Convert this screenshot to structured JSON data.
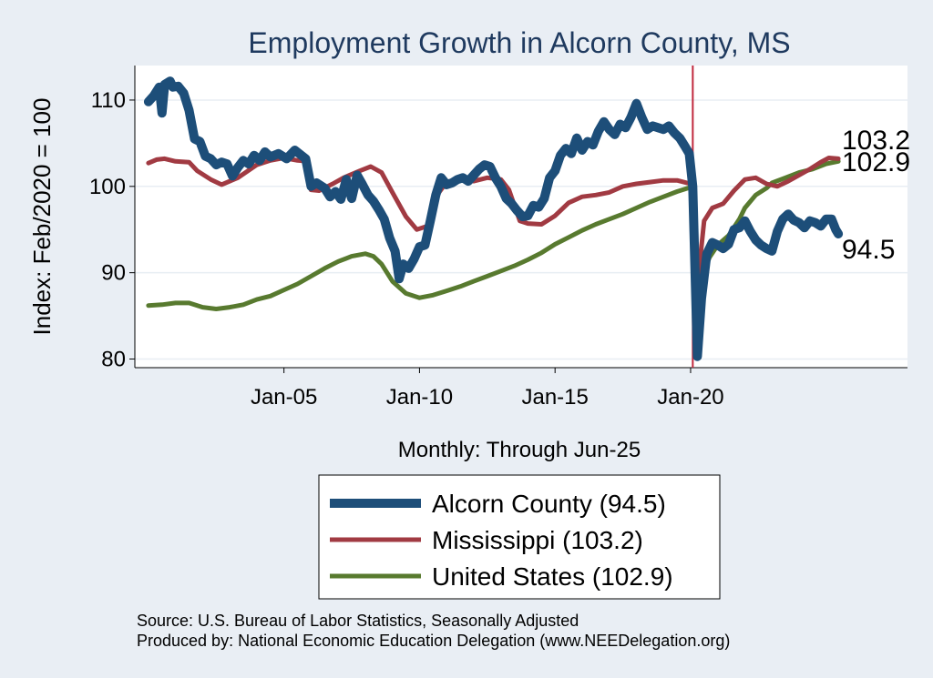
{
  "chart_data": {
    "type": "line",
    "title": "Employment Growth in Alcorn  County, MS",
    "ylabel": "Index: Feb/2020 = 100",
    "xlabel": "Monthly: Through Jun-25",
    "ylim": [
      79,
      114
    ],
    "y_ticks": [
      {
        "value": 80,
        "label": "80"
      },
      {
        "value": 90,
        "label": "90"
      },
      {
        "value": 100,
        "label": "100"
      },
      {
        "value": 110,
        "label": "110"
      }
    ],
    "x_range": [
      1999.5,
      2028.0
    ],
    "x_ticks": [
      {
        "value": 2005.0,
        "label": "Jan-05"
      },
      {
        "value": 2010.0,
        "label": "Jan-10"
      },
      {
        "value": 2015.0,
        "label": "Jan-15"
      },
      {
        "value": 2020.0,
        "label": "Jan-20"
      }
    ],
    "reference_line": {
      "x": 2020.08,
      "color": "#c0283d"
    },
    "grid": true,
    "series": [
      {
        "name": "Alcorn  County",
        "color": "#1d4e79",
        "width": 10,
        "end_value": "94.5",
        "points": [
          [
            2000.0,
            109.8
          ],
          [
            2000.2,
            110.5
          ],
          [
            2000.4,
            111.5
          ],
          [
            2000.5,
            108.5
          ],
          [
            2000.6,
            111.8
          ],
          [
            2000.8,
            112.2
          ],
          [
            2000.9,
            111.5
          ],
          [
            2001.1,
            111.6
          ],
          [
            2001.3,
            110.8
          ],
          [
            2001.5,
            108.8
          ],
          [
            2001.7,
            105.5
          ],
          [
            2001.9,
            105.2
          ],
          [
            2002.1,
            103.5
          ],
          [
            2002.3,
            103.2
          ],
          [
            2002.5,
            102.5
          ],
          [
            2002.7,
            102.8
          ],
          [
            2002.9,
            102.6
          ],
          [
            2003.1,
            101.2
          ],
          [
            2003.3,
            102.2
          ],
          [
            2003.5,
            103.0
          ],
          [
            2003.7,
            102.6
          ],
          [
            2003.9,
            103.6
          ],
          [
            2004.1,
            103.0
          ],
          [
            2004.3,
            104.0
          ],
          [
            2004.5,
            103.4
          ],
          [
            2004.8,
            103.8
          ],
          [
            2005.1,
            103.2
          ],
          [
            2005.4,
            104.2
          ],
          [
            2005.8,
            103.2
          ],
          [
            2006.0,
            100.0
          ],
          [
            2006.2,
            100.4
          ],
          [
            2006.5,
            99.8
          ],
          [
            2006.7,
            98.8
          ],
          [
            2006.9,
            99.4
          ],
          [
            2007.1,
            98.5
          ],
          [
            2007.3,
            100.8
          ],
          [
            2007.5,
            98.6
          ],
          [
            2007.7,
            101.3
          ],
          [
            2007.9,
            100.2
          ],
          [
            2008.1,
            99.0
          ],
          [
            2008.3,
            98.3
          ],
          [
            2008.5,
            97.3
          ],
          [
            2008.7,
            96.2
          ],
          [
            2008.9,
            94.0
          ],
          [
            2009.1,
            92.5
          ],
          [
            2009.25,
            89.3
          ],
          [
            2009.4,
            91.0
          ],
          [
            2009.6,
            90.5
          ],
          [
            2009.8,
            91.6
          ],
          [
            2010.0,
            93.0
          ],
          [
            2010.2,
            93.2
          ],
          [
            2010.4,
            96.0
          ],
          [
            2010.6,
            99.0
          ],
          [
            2010.8,
            101.0
          ],
          [
            2011.0,
            100.2
          ],
          [
            2011.2,
            100.4
          ],
          [
            2011.4,
            100.8
          ],
          [
            2011.6,
            101.0
          ],
          [
            2011.8,
            100.6
          ],
          [
            2012.0,
            101.3
          ],
          [
            2012.2,
            102.0
          ],
          [
            2012.4,
            102.5
          ],
          [
            2012.6,
            102.3
          ],
          [
            2012.8,
            101.0
          ],
          [
            2013.0,
            100.0
          ],
          [
            2013.2,
            98.6
          ],
          [
            2013.4,
            98.0
          ],
          [
            2013.6,
            97.2
          ],
          [
            2013.8,
            96.5
          ],
          [
            2014.0,
            96.6
          ],
          [
            2014.2,
            97.8
          ],
          [
            2014.4,
            97.6
          ],
          [
            2014.6,
            98.6
          ],
          [
            2014.8,
            101.0
          ],
          [
            2015.0,
            101.8
          ],
          [
            2015.2,
            103.6
          ],
          [
            2015.4,
            104.4
          ],
          [
            2015.6,
            103.8
          ],
          [
            2015.8,
            105.6
          ],
          [
            2016.0,
            104.2
          ],
          [
            2016.2,
            105.2
          ],
          [
            2016.4,
            104.8
          ],
          [
            2016.6,
            106.4
          ],
          [
            2016.8,
            107.5
          ],
          [
            2017.0,
            106.6
          ],
          [
            2017.2,
            106.0
          ],
          [
            2017.4,
            107.2
          ],
          [
            2017.6,
            106.8
          ],
          [
            2017.8,
            108.0
          ],
          [
            2018.0,
            109.6
          ],
          [
            2018.2,
            108.0
          ],
          [
            2018.4,
            106.6
          ],
          [
            2018.6,
            107.0
          ],
          [
            2018.8,
            106.8
          ],
          [
            2019.0,
            106.6
          ],
          [
            2019.2,
            107.0
          ],
          [
            2019.4,
            106.2
          ],
          [
            2019.6,
            105.6
          ],
          [
            2019.8,
            104.6
          ],
          [
            2019.95,
            103.8
          ],
          [
            2020.08,
            100.0
          ],
          [
            2020.25,
            80.3
          ],
          [
            2020.4,
            87.0
          ],
          [
            2020.6,
            92.2
          ],
          [
            2020.8,
            93.5
          ],
          [
            2021.0,
            93.2
          ],
          [
            2021.2,
            92.8
          ],
          [
            2021.4,
            93.3
          ],
          [
            2021.6,
            95.0
          ],
          [
            2021.8,
            95.2
          ],
          [
            2022.0,
            96.0
          ],
          [
            2022.2,
            94.8
          ],
          [
            2022.4,
            93.8
          ],
          [
            2022.6,
            93.2
          ],
          [
            2022.8,
            92.8
          ],
          [
            2023.0,
            92.5
          ],
          [
            2023.2,
            94.8
          ],
          [
            2023.4,
            96.2
          ],
          [
            2023.6,
            96.8
          ],
          [
            2023.8,
            96.1
          ],
          [
            2024.0,
            95.8
          ],
          [
            2024.2,
            95.2
          ],
          [
            2024.4,
            96.0
          ],
          [
            2024.6,
            95.8
          ],
          [
            2024.8,
            95.4
          ],
          [
            2025.0,
            96.2
          ],
          [
            2025.2,
            96.2
          ],
          [
            2025.35,
            95.0
          ],
          [
            2025.45,
            94.5
          ]
        ]
      },
      {
        "name": "Mississippi",
        "color": "#a13a42",
        "width": 5,
        "end_value": "103.2",
        "points": [
          [
            2000.0,
            102.7
          ],
          [
            2000.3,
            103.1
          ],
          [
            2000.6,
            103.2
          ],
          [
            2001.0,
            102.9
          ],
          [
            2001.5,
            102.8
          ],
          [
            2001.8,
            101.8
          ],
          [
            2002.3,
            100.8
          ],
          [
            2002.7,
            100.2
          ],
          [
            2003.3,
            101.0
          ],
          [
            2004.0,
            102.5
          ],
          [
            2004.5,
            103.0
          ],
          [
            2005.0,
            103.3
          ],
          [
            2005.5,
            103.0
          ],
          [
            2005.9,
            102.9
          ],
          [
            2006.0,
            99.6
          ],
          [
            2006.3,
            99.5
          ],
          [
            2006.8,
            100.3
          ],
          [
            2007.2,
            101.0
          ],
          [
            2007.8,
            101.8
          ],
          [
            2008.2,
            102.3
          ],
          [
            2008.6,
            101.6
          ],
          [
            2009.0,
            99.3
          ],
          [
            2009.5,
            96.5
          ],
          [
            2009.9,
            95.0
          ],
          [
            2010.3,
            95.4
          ],
          [
            2010.6,
            98.8
          ],
          [
            2011.0,
            100.5
          ],
          [
            2011.5,
            100.9
          ],
          [
            2012.0,
            100.6
          ],
          [
            2012.5,
            101.0
          ],
          [
            2013.0,
            100.8
          ],
          [
            2013.3,
            99.6
          ],
          [
            2013.7,
            96.0
          ],
          [
            2014.0,
            95.7
          ],
          [
            2014.5,
            95.6
          ],
          [
            2015.0,
            96.6
          ],
          [
            2015.5,
            98.1
          ],
          [
            2016.0,
            98.8
          ],
          [
            2016.5,
            99.0
          ],
          [
            2017.0,
            99.3
          ],
          [
            2017.5,
            100.0
          ],
          [
            2018.0,
            100.3
          ],
          [
            2018.5,
            100.5
          ],
          [
            2019.0,
            100.7
          ],
          [
            2019.5,
            100.7
          ],
          [
            2020.0,
            100.3
          ],
          [
            2020.08,
            100.0
          ],
          [
            2020.25,
            88.5
          ],
          [
            2020.5,
            96.0
          ],
          [
            2020.8,
            97.5
          ],
          [
            2021.2,
            98.0
          ],
          [
            2021.6,
            99.5
          ],
          [
            2022.0,
            100.8
          ],
          [
            2022.4,
            101.0
          ],
          [
            2022.8,
            100.3
          ],
          [
            2023.2,
            100.0
          ],
          [
            2023.6,
            100.6
          ],
          [
            2024.0,
            101.3
          ],
          [
            2024.4,
            102.0
          ],
          [
            2024.8,
            102.8
          ],
          [
            2025.1,
            103.3
          ],
          [
            2025.45,
            103.2
          ]
        ]
      },
      {
        "name": "United States",
        "color": "#587a2f",
        "width": 5,
        "end_value": "102.9",
        "points": [
          [
            2000.0,
            86.2
          ],
          [
            2000.5,
            86.3
          ],
          [
            2001.0,
            86.5
          ],
          [
            2001.5,
            86.5
          ],
          [
            2002.0,
            86.0
          ],
          [
            2002.5,
            85.8
          ],
          [
            2003.0,
            86.0
          ],
          [
            2003.5,
            86.3
          ],
          [
            2004.0,
            86.9
          ],
          [
            2004.5,
            87.3
          ],
          [
            2005.0,
            88.0
          ],
          [
            2005.5,
            88.7
          ],
          [
            2006.0,
            89.6
          ],
          [
            2006.5,
            90.5
          ],
          [
            2007.0,
            91.3
          ],
          [
            2007.5,
            91.9
          ],
          [
            2008.0,
            92.2
          ],
          [
            2008.3,
            91.9
          ],
          [
            2008.6,
            91.0
          ],
          [
            2009.0,
            89.0
          ],
          [
            2009.5,
            87.6
          ],
          [
            2010.0,
            87.1
          ],
          [
            2010.5,
            87.4
          ],
          [
            2011.0,
            87.9
          ],
          [
            2011.5,
            88.4
          ],
          [
            2012.0,
            89.0
          ],
          [
            2012.5,
            89.6
          ],
          [
            2013.0,
            90.2
          ],
          [
            2013.5,
            90.8
          ],
          [
            2014.0,
            91.5
          ],
          [
            2014.5,
            92.3
          ],
          [
            2015.0,
            93.3
          ],
          [
            2015.5,
            94.1
          ],
          [
            2016.0,
            94.9
          ],
          [
            2016.5,
            95.6
          ],
          [
            2017.0,
            96.2
          ],
          [
            2017.5,
            96.8
          ],
          [
            2018.0,
            97.5
          ],
          [
            2018.5,
            98.2
          ],
          [
            2019.0,
            98.8
          ],
          [
            2019.5,
            99.4
          ],
          [
            2020.0,
            99.9
          ],
          [
            2020.08,
            100.0
          ],
          [
            2020.25,
            84.8
          ],
          [
            2020.4,
            89.5
          ],
          [
            2020.7,
            91.8
          ],
          [
            2021.0,
            93.2
          ],
          [
            2021.4,
            94.3
          ],
          [
            2021.8,
            96.2
          ],
          [
            2022.0,
            97.5
          ],
          [
            2022.4,
            99.0
          ],
          [
            2022.8,
            99.8
          ],
          [
            2023.0,
            100.4
          ],
          [
            2023.5,
            101.0
          ],
          [
            2024.0,
            101.6
          ],
          [
            2024.5,
            102.0
          ],
          [
            2025.0,
            102.6
          ],
          [
            2025.45,
            102.9
          ]
        ]
      }
    ],
    "end_labels": [
      "103.2",
      "102.9",
      "94.5"
    ],
    "legend": {
      "placement": "bottom-center",
      "entries": [
        "Alcorn  County (94.5)",
        "Mississippi (103.2)",
        "United States (102.9)"
      ]
    }
  },
  "source": {
    "line1": "Source: U.S. Bureau of Labor Statistics, Seasonally Adjusted",
    "line2": "Produced by: National Economic Education Delegation (www.NEEDelegation.org)"
  }
}
